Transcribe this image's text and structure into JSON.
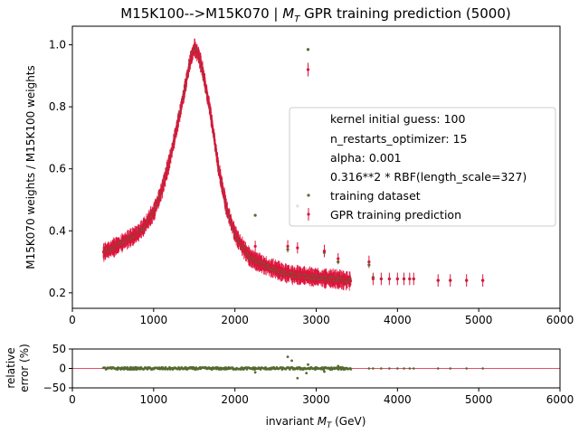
{
  "title_prefix": "M15K100-->M15K070 | ",
  "title_var": "M",
  "title_sub": "T",
  "title_suffix": " GPR training prediction (5000)",
  "chart_data": [
    {
      "type": "scatter",
      "name": "main",
      "ylabel": "M15K070 weights / M15K100 weights",
      "xlim": [
        0,
        6000
      ],
      "ylim": [
        0.15,
        1.06
      ],
      "xticks": [
        0,
        1000,
        2000,
        3000,
        4000,
        5000,
        6000
      ],
      "yticks": [
        0.2,
        0.4,
        0.6,
        0.8,
        1.0
      ],
      "ytick_labels": [
        "0.2",
        "0.4",
        "0.6",
        "0.8",
        "1.0"
      ],
      "legend": {
        "placement": "center-right",
        "entries": [
          "kernel initial guess: 100",
          "n_restarts_optimizer: 15",
          "alpha: 0.001",
          "0.316**2 * RBF(length_scale=327)",
          "training dataset",
          "GPR training prediction"
        ]
      },
      "colors": {
        "training": "#556b2f",
        "prediction": "#dc143c"
      },
      "curve": {
        "x": [
          380,
          500,
          600,
          700,
          800,
          900,
          1000,
          1100,
          1200,
          1300,
          1400,
          1450,
          1500,
          1550,
          1600,
          1700,
          1800,
          1900,
          2000,
          2100,
          2200,
          2400,
          2600,
          2800,
          3000,
          3200,
          3400
        ],
        "y": [
          0.33,
          0.345,
          0.36,
          0.375,
          0.39,
          0.42,
          0.46,
          0.53,
          0.63,
          0.75,
          0.88,
          0.95,
          0.99,
          0.97,
          0.92,
          0.78,
          0.6,
          0.47,
          0.39,
          0.345,
          0.31,
          0.285,
          0.265,
          0.255,
          0.25,
          0.245,
          0.24
        ]
      },
      "outliers": [
        {
          "x": 2250,
          "y": 0.35,
          "yt": 0.45,
          "err": 0.018
        },
        {
          "x": 2650,
          "y": 0.35,
          "yt": 0.34,
          "err": 0.02
        },
        {
          "x": 2770,
          "y": 0.345,
          "yt": 0.48,
          "err": 0.018
        },
        {
          "x": 2900,
          "y": 0.92,
          "yt": 0.985,
          "err": 0.022
        },
        {
          "x": 3100,
          "y": 0.335,
          "yt": 0.33,
          "err": 0.02
        },
        {
          "x": 3270,
          "y": 0.31,
          "yt": 0.3,
          "err": 0.018
        },
        {
          "x": 3650,
          "y": 0.3,
          "yt": 0.29,
          "err": 0.02
        },
        {
          "x": 3700,
          "y": 0.245,
          "yt": 0.25,
          "err": 0.02
        },
        {
          "x": 3800,
          "y": 0.245,
          "yt": 0.245,
          "err": 0.02
        },
        {
          "x": 3900,
          "y": 0.245,
          "yt": 0.245,
          "err": 0.02
        },
        {
          "x": 4000,
          "y": 0.245,
          "yt": 0.245,
          "err": 0.02
        },
        {
          "x": 4080,
          "y": 0.245,
          "yt": 0.245,
          "err": 0.02
        },
        {
          "x": 4150,
          "y": 0.245,
          "yt": 0.245,
          "err": 0.02
        },
        {
          "x": 4200,
          "y": 0.245,
          "yt": 0.245,
          "err": 0.02
        },
        {
          "x": 4500,
          "y": 0.24,
          "yt": 0.24,
          "err": 0.02
        },
        {
          "x": 4650,
          "y": 0.24,
          "yt": 0.24,
          "err": 0.02
        },
        {
          "x": 4850,
          "y": 0.24,
          "yt": 0.24,
          "err": 0.02
        },
        {
          "x": 5050,
          "y": 0.24,
          "yt": 0.24,
          "err": 0.02
        }
      ]
    },
    {
      "type": "scatter",
      "name": "residual",
      "ylabel_line1": "relative",
      "ylabel_line2": "error (%)",
      "xlabel_prefix": "invariant ",
      "xlabel_var": "M",
      "xlabel_sub": "T",
      "xlabel_suffix": " (GeV)",
      "xlim": [
        0,
        6000
      ],
      "ylim": [
        -50,
        50
      ],
      "xticks": [
        0,
        1000,
        2000,
        3000,
        4000,
        5000,
        6000
      ],
      "yticks": [
        -50,
        0,
        50
      ],
      "ytick_labels": [
        "−50",
        "0",
        "50"
      ],
      "reference_line": 0,
      "outliers": [
        {
          "x": 2650,
          "y": 30
        },
        {
          "x": 2700,
          "y": 20
        },
        {
          "x": 2770,
          "y": -25
        },
        {
          "x": 2900,
          "y": 10
        },
        {
          "x": 2880,
          "y": -12
        },
        {
          "x": 3100,
          "y": -8
        },
        {
          "x": 2250,
          "y": -10
        },
        {
          "x": 3270,
          "y": 6
        }
      ]
    }
  ]
}
